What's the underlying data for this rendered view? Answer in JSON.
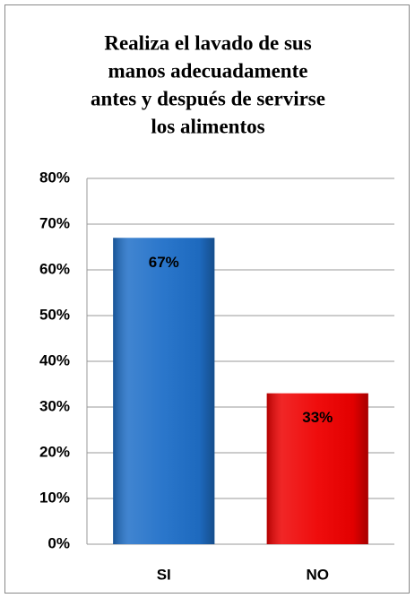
{
  "chart_data": {
    "type": "bar",
    "title": [
      "Realiza el lavado de sus",
      "manos adecuadamente",
      "antes y después de servirse",
      "los alimentos"
    ],
    "categories": [
      "SI",
      "NO"
    ],
    "values": [
      67,
      33
    ],
    "value_labels": [
      "67%",
      "33%"
    ],
    "colors": [
      "#1f6fc8",
      "#ee0000"
    ],
    "ylim": [
      0,
      80
    ],
    "yticks": [
      {
        "value": 0,
        "label": "0%"
      },
      {
        "value": 10,
        "label": "10%"
      },
      {
        "value": 20,
        "label": "20%"
      },
      {
        "value": 30,
        "label": "30%"
      },
      {
        "value": 40,
        "label": "40%"
      },
      {
        "value": 50,
        "label": "50%"
      },
      {
        "value": 60,
        "label": "60%"
      },
      {
        "value": 70,
        "label": "70%"
      },
      {
        "value": 80,
        "label": "80%"
      }
    ],
    "grid": true
  }
}
